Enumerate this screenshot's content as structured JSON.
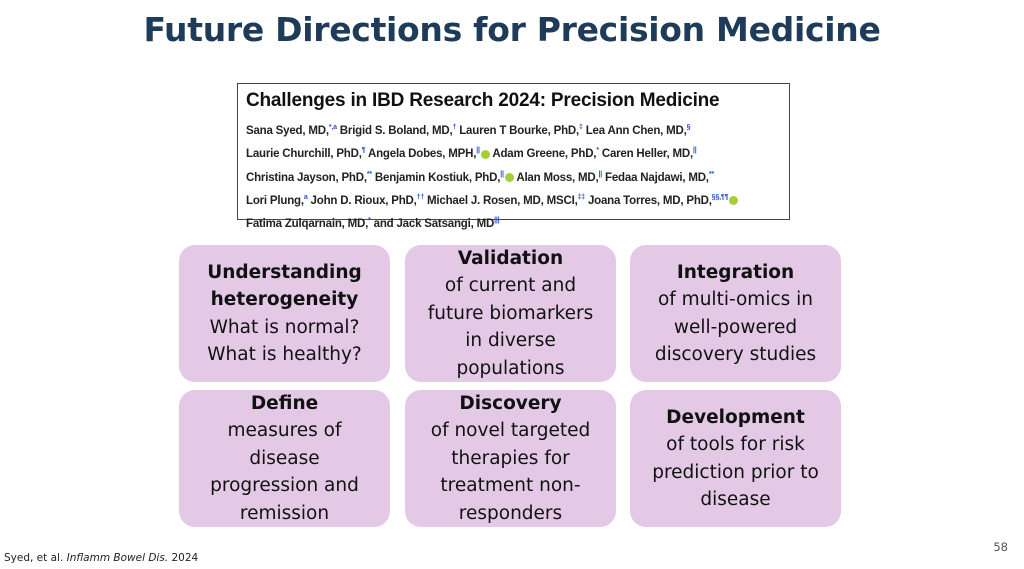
{
  "slide": {
    "title": "Future Directions for Precision Medicine",
    "page_number": "58",
    "citation": {
      "prefix": "Syed, et al. ",
      "journal": "Inflamm Bowel Dis.",
      "year": " 2024"
    }
  },
  "paper": {
    "title": "Challenges in IBD Research 2024: Precision Medicine",
    "author_lines": [
      [
        {
          "name": "Sana Syed, MD,",
          "sup": "*,a"
        },
        {
          "name": " Brigid S. Boland, MD,",
          "sup": "†"
        },
        {
          "name": " Lauren T Bourke, PhD,",
          "sup": "‡"
        },
        {
          "name": " Lea Ann Chen, MD,",
          "sup": "§"
        }
      ],
      [
        {
          "name": "Laurie Churchill, PhD,",
          "sup": "¶"
        },
        {
          "name": " Angela Dobes, MPH,",
          "sup": "||",
          "orcid": true
        },
        {
          "name": " Adam Greene, PhD,",
          "sup": "*"
        },
        {
          "name": " Caren Heller, MD,",
          "sup": "||"
        }
      ],
      [
        {
          "name": "Christina Jayson, PhD,",
          "sup": "**"
        },
        {
          "name": " Benjamin Kostiuk, PhD,",
          "sup": "||",
          "orcid": true
        },
        {
          "name": " Alan Moss, MD,",
          "sup": "||"
        },
        {
          "name": " Fedaa Najdawi, MD,",
          "sup": "**"
        }
      ],
      [
        {
          "name": "Lori Plung,",
          "sup": "a"
        },
        {
          "name": " John D. Rioux, PhD,",
          "sup": "††"
        },
        {
          "name": " Michael J. Rosen, MD, MSCI,",
          "sup": "‡‡"
        },
        {
          "name": " Joana Torres, MD, PhD,",
          "sup": "§§,¶¶",
          "orcid": true
        }
      ],
      [
        {
          "name": "Fatima Zulqarnain, MD,",
          "sup": "*"
        },
        {
          "name": " and Jack Satsangi, MD",
          "sup": "|||"
        }
      ]
    ]
  },
  "cards": [
    {
      "heading": "Understanding heterogeneity",
      "body": "What is normal? What is healthy?"
    },
    {
      "heading": "Validation",
      "body": "of current and future biomarkers in diverse populations"
    },
    {
      "heading": "Integration",
      "body": "of multi-omics in well-powered discovery studies"
    },
    {
      "heading": "Define",
      "body": "measures of disease progression and remission"
    },
    {
      "heading": "Discovery",
      "body": "of novel targeted therapies for treatment non-responders"
    },
    {
      "heading": "Development",
      "body": "of tools for risk prediction prior to disease"
    }
  ],
  "colors": {
    "title": "#1f3b5a",
    "card_background": "#e3c9e6",
    "orcid": "#a6ce39",
    "superscript": "#2a52be"
  }
}
